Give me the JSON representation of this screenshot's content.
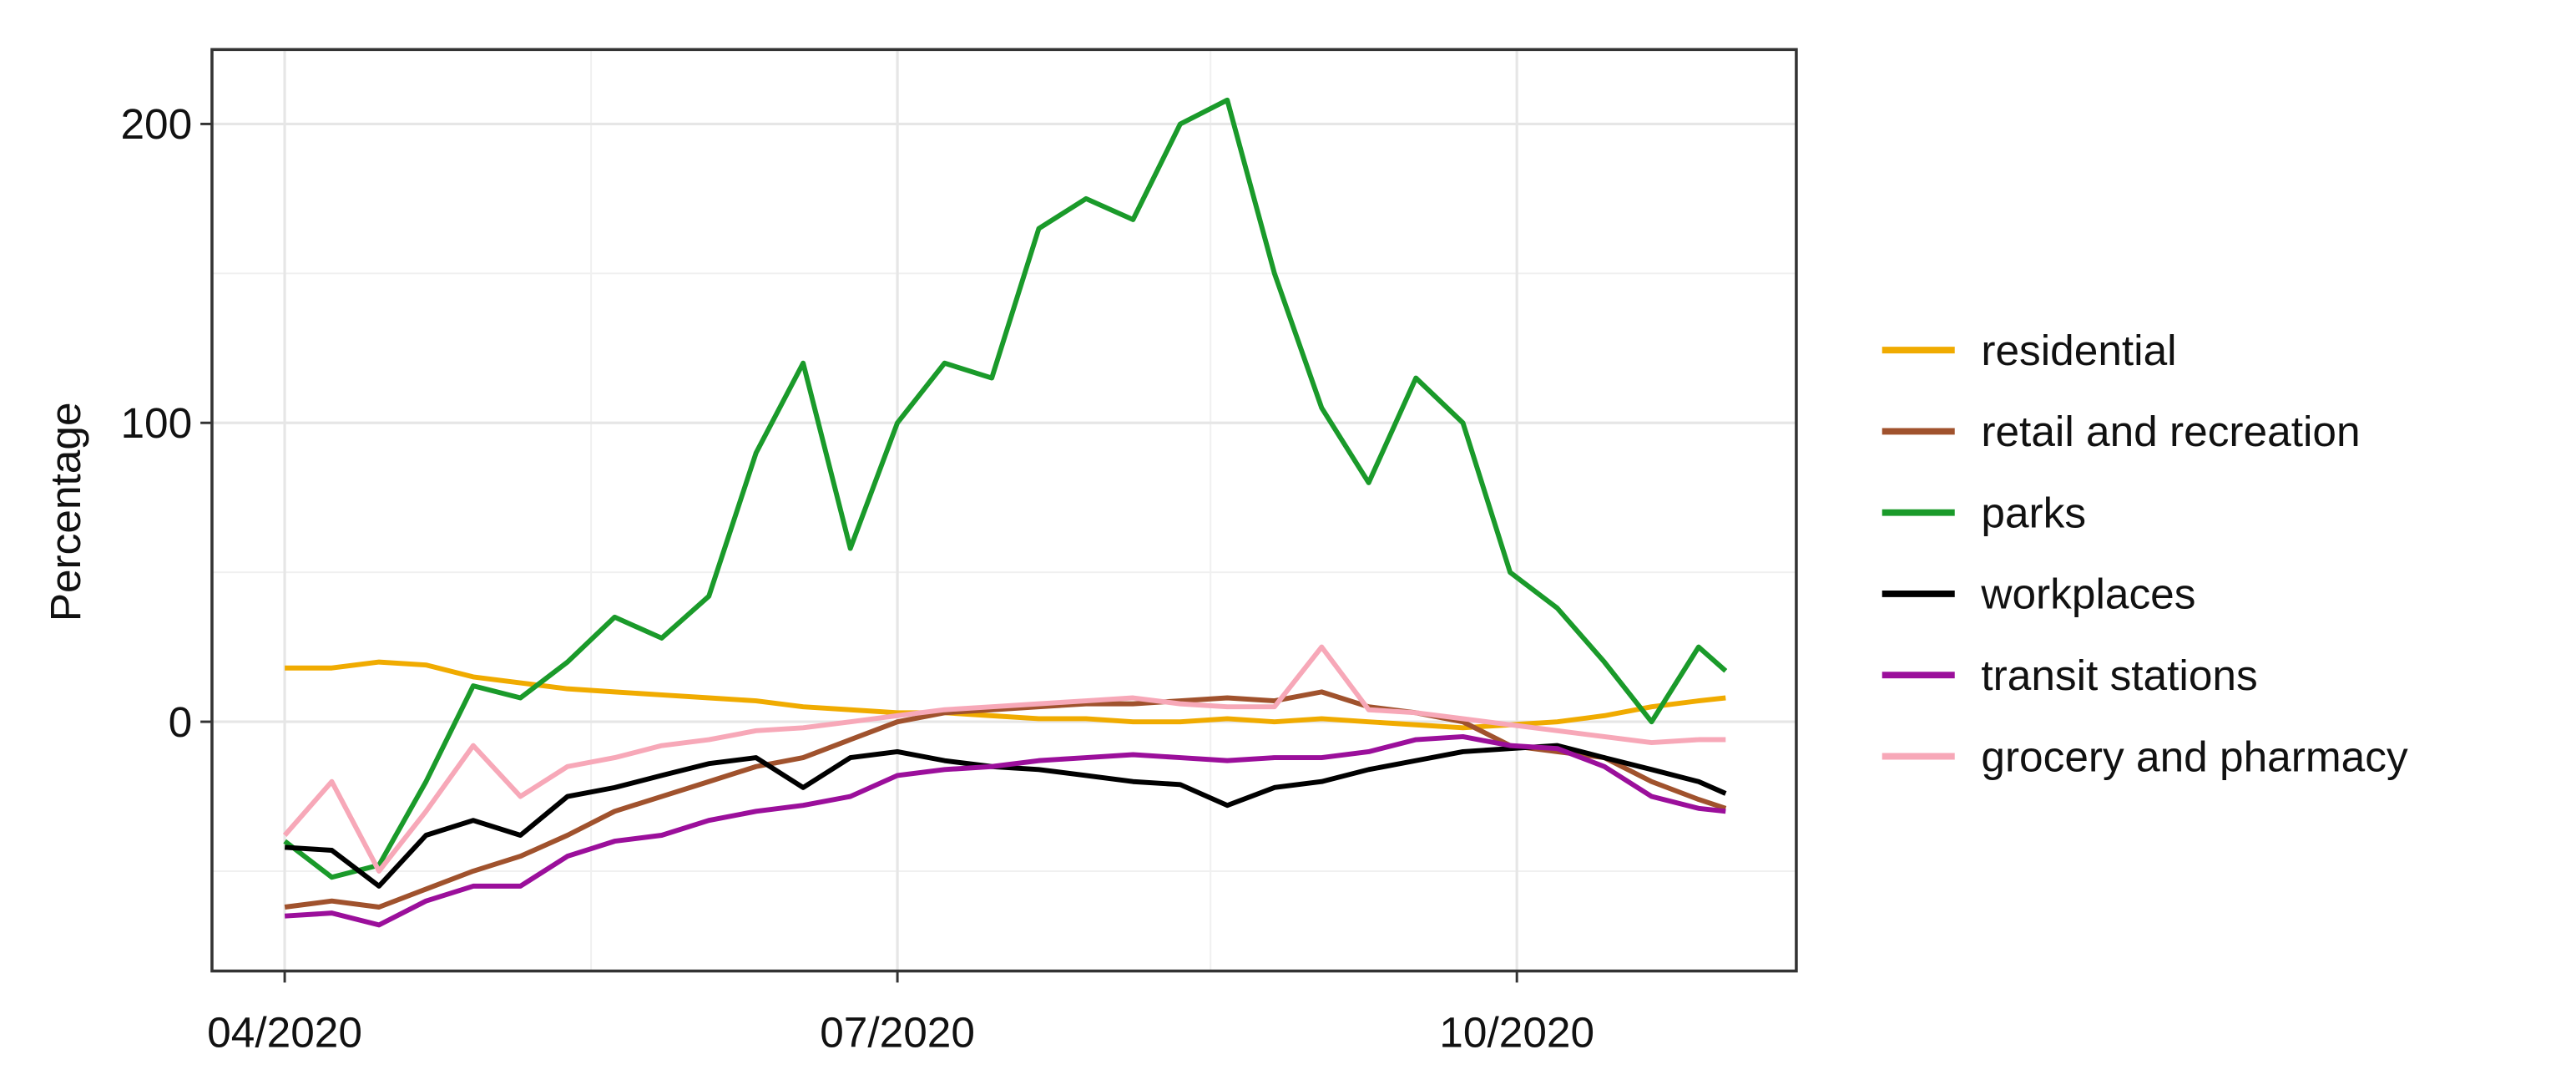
{
  "chart_data": {
    "type": "line",
    "ylabel": "Percentage",
    "x": [
      0,
      7,
      14,
      21,
      28,
      35,
      42,
      49,
      56,
      63,
      70,
      77,
      84,
      91,
      98,
      105,
      112,
      119,
      126,
      133,
      140,
      147,
      154,
      161,
      168,
      175,
      182,
      189,
      196,
      203,
      210,
      214
    ],
    "xlim": [
      -10.8,
      224.5
    ],
    "xticks": [
      {
        "value": 0,
        "label": "04/2020"
      },
      {
        "value": 91,
        "label": "07/2020"
      },
      {
        "value": 183,
        "label": "10/2020"
      }
    ],
    "xminorticks": [
      45.5,
      137.5
    ],
    "ylim": [
      -83.4,
      224.9
    ],
    "yticks": [
      0,
      100,
      200
    ],
    "yminorticks": [
      -50,
      50,
      150
    ],
    "grid": true,
    "legend": "right",
    "series": [
      {
        "name": "residential",
        "color": "#f0ab00",
        "values": [
          18,
          18,
          20,
          19,
          15,
          13,
          11,
          10,
          9,
          8,
          7,
          5,
          4,
          3,
          3,
          2,
          1,
          1,
          0,
          0,
          1,
          0,
          1,
          0,
          -1,
          -2,
          -1,
          0,
          2,
          5,
          7,
          8
        ]
      },
      {
        "name": "retail and recreation",
        "color": "#a0522d",
        "values": [
          -62,
          -60,
          -62,
          -56,
          -50,
          -45,
          -38,
          -30,
          -25,
          -20,
          -15,
          -12,
          -6,
          0,
          3,
          4,
          5,
          6,
          6,
          7,
          8,
          7,
          10,
          5,
          3,
          0,
          -8,
          -10,
          -12,
          -20,
          -26,
          -29
        ]
      },
      {
        "name": "parks",
        "color": "#1a9a2a",
        "values": [
          -40,
          -52,
          -48,
          -20,
          12,
          8,
          20,
          35,
          28,
          42,
          90,
          120,
          58,
          100,
          120,
          115,
          165,
          175,
          168,
          200,
          208,
          150,
          105,
          80,
          115,
          100,
          50,
          38,
          20,
          0,
          25,
          17
        ]
      },
      {
        "name": "workplaces",
        "color": "#000000",
        "values": [
          -42,
          -43,
          -55,
          -38,
          -33,
          -38,
          -25,
          -22,
          -18,
          -14,
          -12,
          -22,
          -12,
          -10,
          -13,
          -15,
          -16,
          -18,
          -20,
          -21,
          -28,
          -22,
          -20,
          -16,
          -13,
          -10,
          -9,
          -8,
          -12,
          -16,
          -20,
          -24
        ]
      },
      {
        "name": "transit stations",
        "color": "#9b0f9b",
        "values": [
          -65,
          -64,
          -68,
          -60,
          -55,
          -55,
          -45,
          -40,
          -38,
          -33,
          -30,
          -28,
          -25,
          -18,
          -16,
          -15,
          -13,
          -12,
          -11,
          -12,
          -13,
          -12,
          -12,
          -10,
          -6,
          -5,
          -8,
          -9,
          -15,
          -25,
          -29,
          -30
        ]
      },
      {
        "name": "grocery and pharmacy",
        "color": "#f7a8b8",
        "values": [
          -38,
          -20,
          -50,
          -30,
          -8,
          -25,
          -15,
          -12,
          -8,
          -6,
          -3,
          -2,
          0,
          2,
          4,
          5,
          6,
          7,
          8,
          6,
          5,
          5,
          25,
          4,
          3,
          1,
          -1,
          -3,
          -5,
          -7,
          -6,
          -6
        ]
      }
    ]
  }
}
